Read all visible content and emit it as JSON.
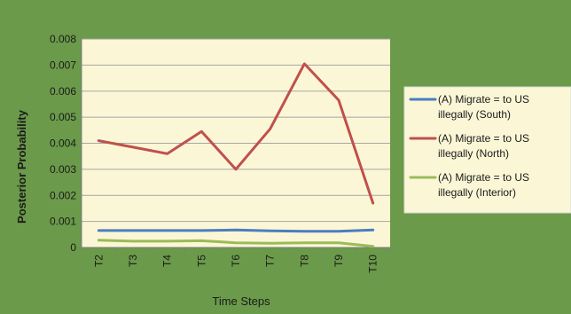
{
  "colors": {
    "chart_background": "#6b9a4a",
    "plot_background": "#fbf7d6",
    "legend_background": "#fbf7d6",
    "gridline": "#a6a6a6",
    "axis": "#7f7f7f",
    "text": "#1a1a1a"
  },
  "chart_data": {
    "type": "line",
    "title": "",
    "xlabel": "Time Steps",
    "ylabel": "Posterior Probability",
    "categories": [
      "T2",
      "T3",
      "T4",
      "T5",
      "T6",
      "T7",
      "T8",
      "T9",
      "T10"
    ],
    "ylim": [
      0,
      0.008
    ],
    "yticks": [
      "0",
      "0.001",
      "0.002",
      "0.003",
      "0.004",
      "0.005",
      "0.006",
      "0.007",
      "0.008"
    ],
    "grid": true,
    "legend_position": "right",
    "series": [
      {
        "name": "(A) Migrate = to US illegally (South)",
        "legend_lines": [
          "(A) Migrate = to US",
          "illegally (South)"
        ],
        "color": "#4a7ebf",
        "values": [
          0.00065,
          0.00065,
          0.00065,
          0.00065,
          0.00067,
          0.00064,
          0.00062,
          0.00062,
          0.00067
        ]
      },
      {
        "name": "(A) Migrate = to US illegally (North)",
        "legend_lines": [
          "(A) Migrate = to US",
          "illegally (North)"
        ],
        "color": "#c0504d",
        "values": [
          0.0041,
          0.00385,
          0.0036,
          0.00445,
          0.003,
          0.00455,
          0.00705,
          0.00565,
          0.0017
        ]
      },
      {
        "name": "(A) Migrate = to US illegally (Interior)",
        "legend_lines": [
          "(A) Migrate = to US",
          "illegally (Interior)"
        ],
        "color": "#9bbb59",
        "values": [
          0.00028,
          0.00024,
          0.00024,
          0.00026,
          0.00018,
          0.00016,
          0.00018,
          0.00018,
          4e-05
        ]
      }
    ]
  }
}
